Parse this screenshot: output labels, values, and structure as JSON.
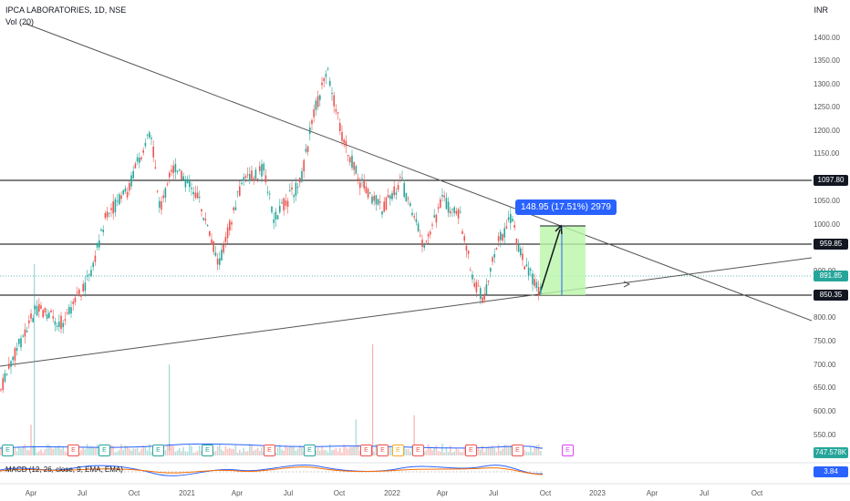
{
  "header": {
    "symbol": "IPCA LABORATORIES, 1D, NSE",
    "volume_label": "Vol (20)",
    "currency": "INR"
  },
  "price_axis": {
    "ticks": [
      "1400.00",
      "1350.00",
      "1300.00",
      "1250.00",
      "1200.00",
      "1150.00",
      "1050.00",
      "1000.00",
      "900.00",
      "800.00",
      "750.00",
      "700.00",
      "650.00",
      "600.00",
      "550.00"
    ],
    "tags": [
      {
        "text": "1097.80",
        "color": "#131722"
      },
      {
        "text": "959.85",
        "color": "#131722"
      },
      {
        "text": "891.85",
        "color": "#26a69a"
      },
      {
        "text": "850.35",
        "color": "#131722"
      },
      {
        "text": "747.578K",
        "color": "#26a69a"
      },
      {
        "text": "3.84",
        "color": "#2962ff"
      }
    ]
  },
  "time_axis": {
    "ticks": [
      "Apr",
      "Jul",
      "Oct",
      "2021",
      "Apr",
      "Jul",
      "Oct",
      "2022",
      "Apr",
      "Jul",
      "Oct",
      "2023",
      "Apr",
      "Jul",
      "Oct"
    ]
  },
  "measure_label": "148.95 (17.51%) 2979",
  "macd_label": "MACD (12, 26, close, 9, EMA, EMA)",
  "earnings_badge": "E",
  "colors": {
    "up": "#26a69a",
    "down": "#ef5350",
    "accent": "#2962ff",
    "range_fill": "#b9f6a8"
  }
}
